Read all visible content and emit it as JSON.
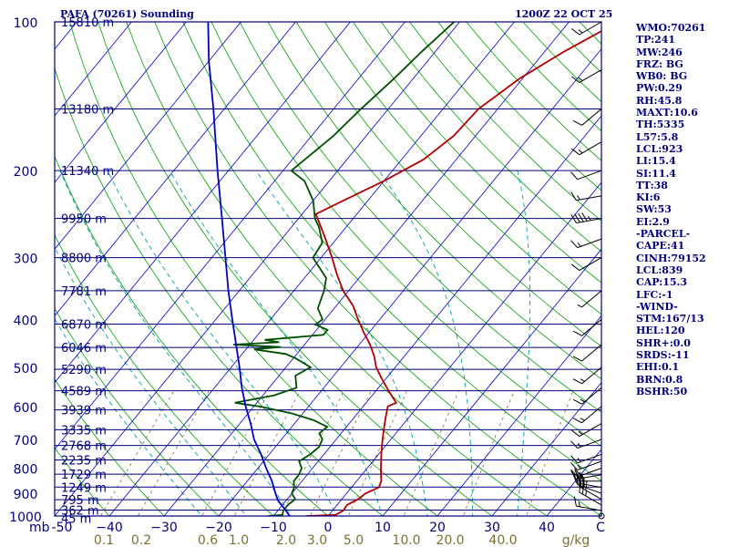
{
  "header": {
    "title": "PAFA (70261) Sounding",
    "valid_time": "1200Z 22 OCT 25"
  },
  "axes": {
    "pressure_label": "mb",
    "temperature_unit": "C",
    "mixing_ratio_unit": "g/kg"
  },
  "indices": [
    "WMO:70261",
    "TP:241",
    "MW:246",
    "FRZ: BG",
    "WB0: BG",
    "PW:0.29",
    "RH:45.8",
    "MAXT:10.6",
    "TH:5335",
    "L57:5.8",
    "LCL:923",
    "LI:15.4",
    "SI:11.4",
    "TT:38",
    "KI:6",
    "SW:53",
    "EI:2.9",
    "-PARCEL-",
    "CAPE:41",
    "CINH:79152",
    "LCL:839",
    "CAP:15.3",
    "LFC:-1",
    "-WIND-",
    "STM:167/13",
    "HEL:120",
    "SHR+:0.0",
    "SRDS:-11",
    "EHI:0.1",
    "BRN:0.8",
    "BSHR:50"
  ],
  "colors": {
    "isobar": "#00007f",
    "isotherm": "#0000cc",
    "dry_adiabat": "#00a000",
    "moist_adiabat": "#00a0a0",
    "mixing_ratio": "#7f6f2f",
    "temperature": "#b00000",
    "dewpoint": "#004f00",
    "parcel": "#0000c0",
    "wind": "#000000"
  },
  "chart_data": {
    "type": "line",
    "chart_kind": "skew-t log-p",
    "y_scale": "log",
    "ylim": [
      1000,
      100
    ],
    "xlim": [
      -50,
      50
    ],
    "pressure_ticks": [
      100,
      200,
      300,
      400,
      500,
      600,
      700,
      800,
      900,
      1000
    ],
    "temperature_ticks": [
      -50,
      -40,
      -30,
      -20,
      -10,
      0,
      10,
      20,
      30,
      40
    ],
    "temperature_tick_labels": [
      "-50",
      "−40",
      "−30",
      "−20",
      "−10",
      "0",
      "10",
      "20",
      "30",
      "40"
    ],
    "mixing_ratio_ticks": [
      "0.1",
      "0.2",
      "0.6",
      "1.0",
      "2.0",
      "3.0",
      "5.0",
      "10.0",
      "20.0",
      "40.0"
    ],
    "heights": [
      {
        "p": 1010,
        "label": "45 m"
      },
      {
        "p": 973,
        "label": "362 m"
      },
      {
        "p": 927,
        "label": "795 m"
      },
      {
        "p": 874,
        "label": "1249 m"
      },
      {
        "p": 823,
        "label": "1729 m"
      },
      {
        "p": 770,
        "label": "2235 m"
      },
      {
        "p": 720,
        "label": "2768 m"
      },
      {
        "p": 669,
        "label": "3335 m"
      },
      {
        "p": 610,
        "label": "3939 m"
      },
      {
        "p": 558,
        "label": "4589 m"
      },
      {
        "p": 505,
        "label": "5290 m"
      },
      {
        "p": 456,
        "label": "6046 m"
      },
      {
        "p": 409,
        "label": "6870 m"
      },
      {
        "p": 350,
        "label": "7781 m"
      },
      {
        "p": 300,
        "label": "8800 m"
      },
      {
        "p": 250,
        "label": "9950 m"
      },
      {
        "p": 200,
        "label": "11340 m"
      },
      {
        "p": 150,
        "label": "13180 m"
      },
      {
        "p": 100,
        "label": "15810 m"
      }
    ],
    "series": [
      {
        "kind": "temperature",
        "points": [
          [
            1000,
            -4.0
          ],
          [
            995,
            1.2
          ],
          [
            975,
            2.0
          ],
          [
            950,
            1.8
          ],
          [
            925,
            3.0
          ],
          [
            900,
            3.5
          ],
          [
            875,
            5.0
          ],
          [
            850,
            4.5
          ],
          [
            825,
            3.5
          ],
          [
            800,
            2.5
          ],
          [
            775,
            1.5
          ],
          [
            750,
            0.5
          ],
          [
            725,
            -0.5
          ],
          [
            700,
            -1.5
          ],
          [
            675,
            -2.5
          ],
          [
            650,
            -3.5
          ],
          [
            625,
            -4.5
          ],
          [
            600,
            -5.5
          ],
          [
            590,
            -4.5
          ],
          [
            560,
            -7.5
          ],
          [
            525,
            -11.0
          ],
          [
            500,
            -13.5
          ],
          [
            475,
            -15.5
          ],
          [
            450,
            -18.0
          ],
          [
            425,
            -21.0
          ],
          [
            400,
            -24.0
          ],
          [
            375,
            -27.0
          ],
          [
            350,
            -31.0
          ],
          [
            325,
            -34.5
          ],
          [
            300,
            -38.0
          ],
          [
            275,
            -42.0
          ],
          [
            250,
            -46.5
          ],
          [
            245,
            -47.5
          ],
          [
            230,
            -44.5
          ],
          [
            210,
            -40.0
          ],
          [
            190,
            -36.0
          ],
          [
            170,
            -34.0
          ],
          [
            150,
            -33.5
          ],
          [
            130,
            -30.5
          ],
          [
            115,
            -26.5
          ],
          [
            100,
            -21.0
          ]
        ]
      },
      {
        "kind": "dewpoint",
        "points": [
          [
            1000,
            -11.0
          ],
          [
            995,
            -8.5
          ],
          [
            975,
            -9.0
          ],
          [
            950,
            -9.0
          ],
          [
            925,
            -8.5
          ],
          [
            900,
            -10.0
          ],
          [
            875,
            -10.5
          ],
          [
            850,
            -11.5
          ],
          [
            825,
            -11.5
          ],
          [
            800,
            -12.0
          ],
          [
            775,
            -13.5
          ],
          [
            750,
            -12.5
          ],
          [
            725,
            -12.0
          ],
          [
            700,
            -12.5
          ],
          [
            680,
            -14.0
          ],
          [
            660,
            -13.5
          ],
          [
            640,
            -17.0
          ],
          [
            620,
            -22.0
          ],
          [
            600,
            -29.0
          ],
          [
            590,
            -34.0
          ],
          [
            570,
            -28.0
          ],
          [
            550,
            -25.0
          ],
          [
            520,
            -27.0
          ],
          [
            500,
            -25.5
          ],
          [
            480,
            -29.5
          ],
          [
            470,
            -32.0
          ],
          [
            460,
            -38.5
          ],
          [
            455,
            -34.0
          ],
          [
            450,
            -43.0
          ],
          [
            445,
            -35.0
          ],
          [
            440,
            -38.0
          ],
          [
            430,
            -28.0
          ],
          [
            420,
            -28.0
          ],
          [
            410,
            -31.0
          ],
          [
            400,
            -30.5
          ],
          [
            380,
            -33.0
          ],
          [
            350,
            -34.5
          ],
          [
            330,
            -36.0
          ],
          [
            300,
            -41.5
          ],
          [
            280,
            -42.0
          ],
          [
            260,
            -45.0
          ],
          [
            250,
            -47.0
          ],
          [
            230,
            -50.0
          ],
          [
            210,
            -54.5
          ],
          [
            200,
            -58.5
          ],
          [
            170,
            -56.0
          ],
          [
            150,
            -55.0
          ],
          [
            130,
            -53.5
          ],
          [
            115,
            -52.5
          ],
          [
            100,
            -51.0
          ]
        ]
      },
      {
        "kind": "parcel",
        "points": [
          [
            1000,
            -7.0
          ],
          [
            960,
            -9.5
          ],
          [
            930,
            -11.5
          ],
          [
            900,
            -13.0
          ],
          [
            850,
            -15.5
          ],
          [
            800,
            -18.5
          ],
          [
            750,
            -21.5
          ],
          [
            700,
            -25.0
          ],
          [
            650,
            -28.0
          ],
          [
            600,
            -31.5
          ],
          [
            550,
            -35.0
          ],
          [
            500,
            -38.5
          ],
          [
            450,
            -42.5
          ],
          [
            400,
            -47.0
          ],
          [
            350,
            -52.0
          ],
          [
            300,
            -57.5
          ],
          [
            250,
            -64.0
          ],
          [
            200,
            -72.0
          ],
          [
            150,
            -82.0
          ],
          [
            120,
            -90.0
          ],
          [
            100,
            -96.0
          ]
        ]
      }
    ],
    "wind_barbs": [
      {
        "p": 1000,
        "dir": 360,
        "spd": 0
      },
      {
        "p": 975,
        "dir": 280,
        "spd": 15
      },
      {
        "p": 950,
        "dir": 300,
        "spd": 25
      },
      {
        "p": 925,
        "dir": 300,
        "spd": 30
      },
      {
        "p": 900,
        "dir": 290,
        "spd": 30
      },
      {
        "p": 875,
        "dir": 280,
        "spd": 30
      },
      {
        "p": 850,
        "dir": 270,
        "spd": 30
      },
      {
        "p": 825,
        "dir": 260,
        "spd": 25
      },
      {
        "p": 800,
        "dir": 250,
        "spd": 20
      },
      {
        "p": 775,
        "dir": 250,
        "spd": 15
      },
      {
        "p": 750,
        "dir": 250,
        "spd": 15
      },
      {
        "p": 700,
        "dir": 250,
        "spd": 15
      },
      {
        "p": 650,
        "dir": 240,
        "spd": 15
      },
      {
        "p": 600,
        "dir": 230,
        "spd": 15
      },
      {
        "p": 550,
        "dir": 230,
        "spd": 15
      },
      {
        "p": 500,
        "dir": 230,
        "spd": 15
      },
      {
        "p": 450,
        "dir": 230,
        "spd": 10
      },
      {
        "p": 400,
        "dir": 230,
        "spd": 10
      },
      {
        "p": 350,
        "dir": 230,
        "spd": 5
      },
      {
        "p": 300,
        "dir": 240,
        "spd": 10
      },
      {
        "p": 275,
        "dir": 250,
        "spd": 15
      },
      {
        "p": 250,
        "dir": 260,
        "spd": 45
      },
      {
        "p": 225,
        "dir": 260,
        "spd": 15
      },
      {
        "p": 200,
        "dir": 250,
        "spd": 10
      },
      {
        "p": 175,
        "dir": 240,
        "spd": 15
      },
      {
        "p": 150,
        "dir": 230,
        "spd": 10
      },
      {
        "p": 125,
        "dir": 240,
        "spd": 15
      },
      {
        "p": 100,
        "dir": 240,
        "spd": 15
      }
    ]
  }
}
